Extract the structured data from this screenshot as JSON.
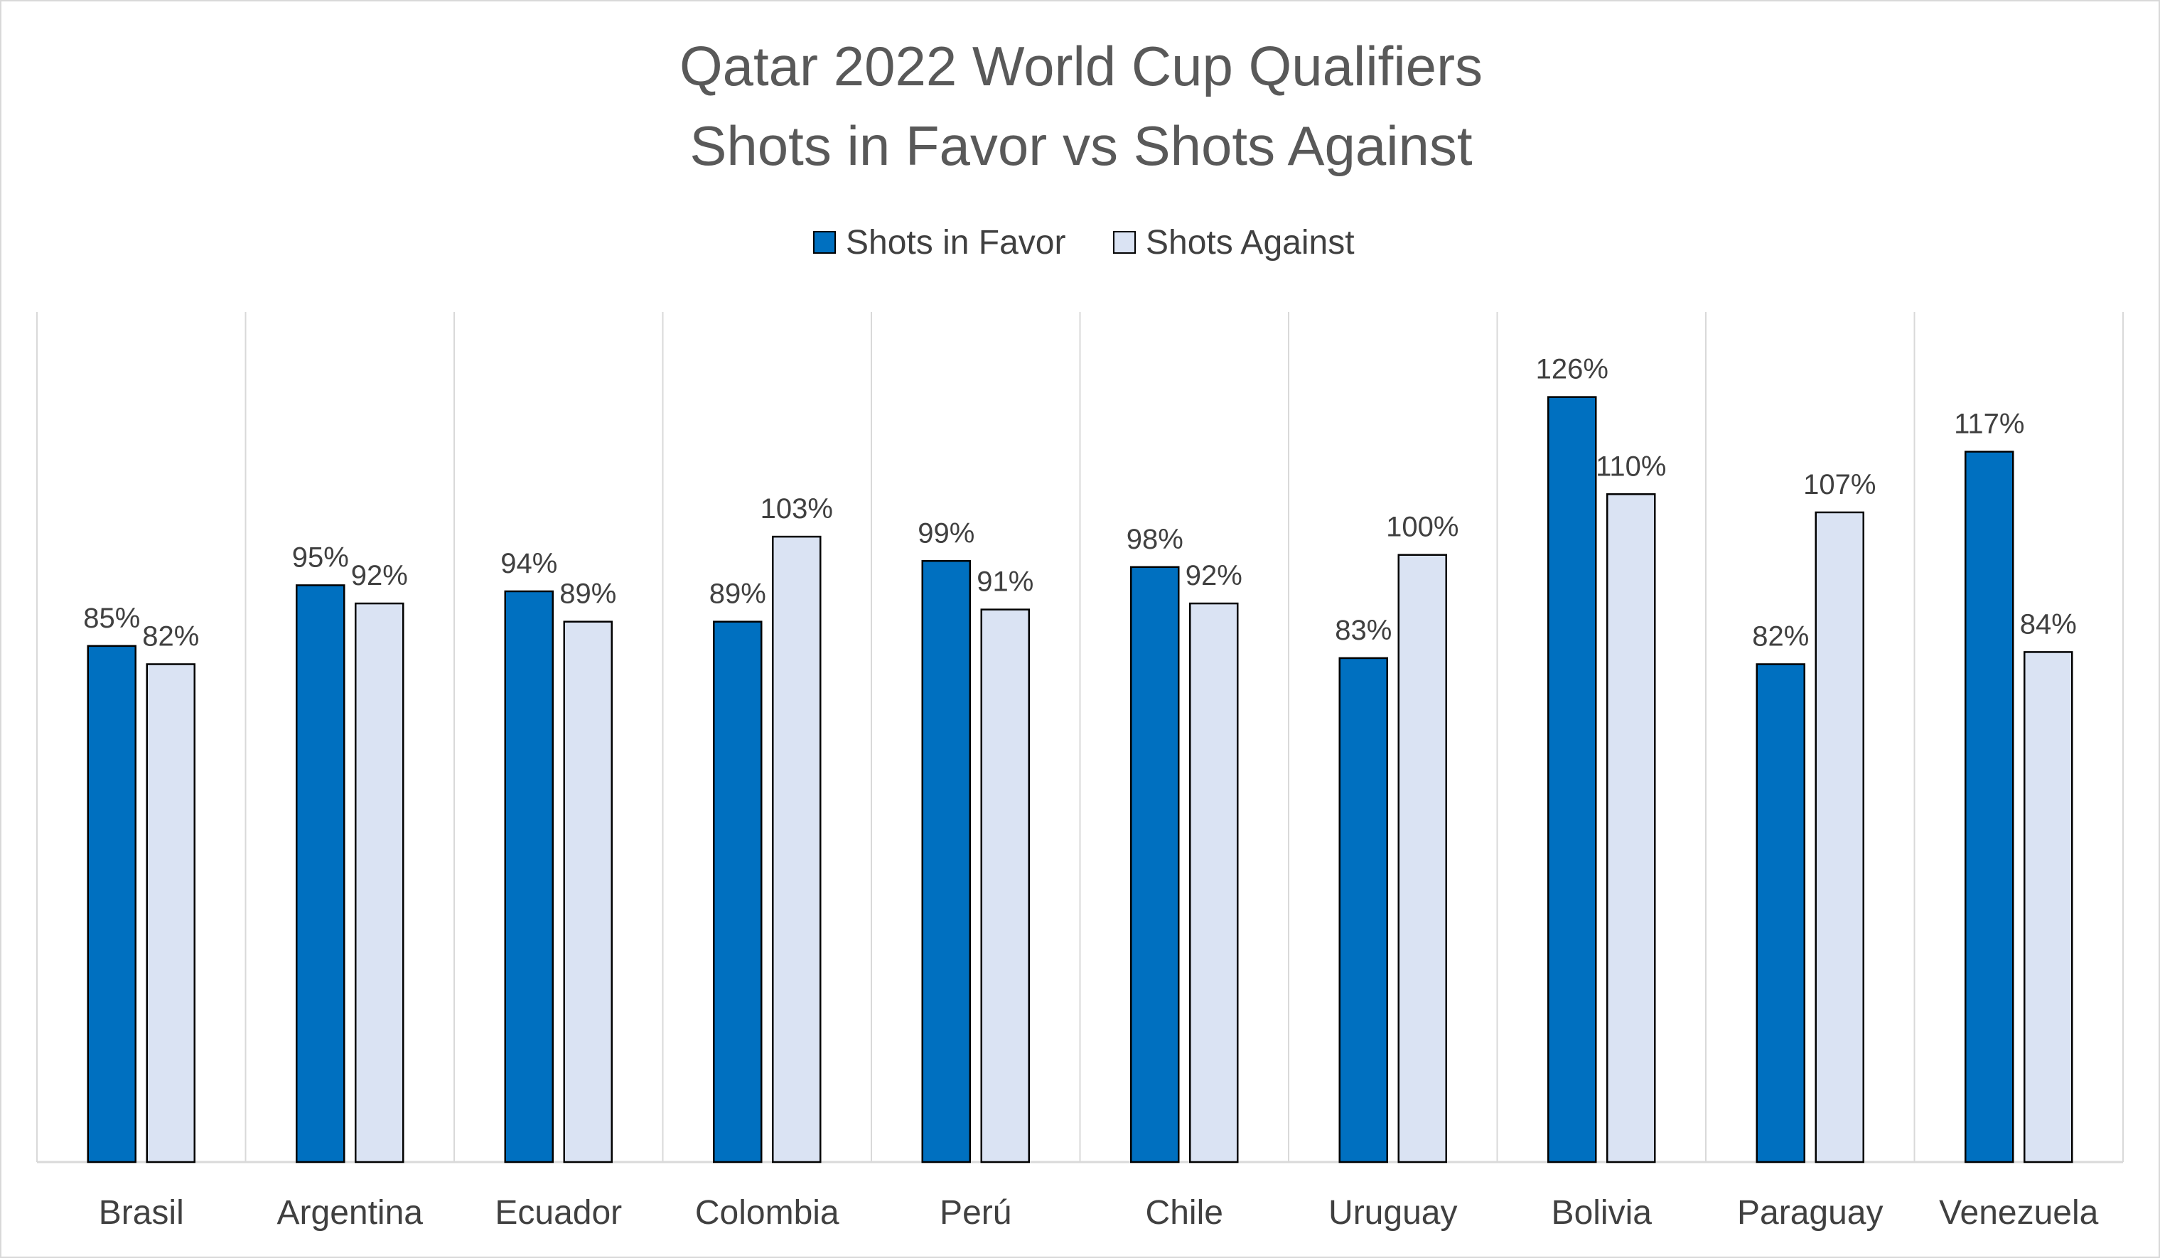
{
  "chart_data": {
    "type": "bar",
    "title": [
      "Qatar 2022 World Cup Qualifiers",
      "Shots in Favor vs Shots Against"
    ],
    "categories": [
      "Brasil",
      "Argentina",
      "Ecuador",
      "Colombia",
      "Perú",
      "Chile",
      "Uruguay",
      "Bolivia",
      "Paraguay",
      "Venezuela"
    ],
    "series": [
      {
        "name": "Shots in Favor",
        "color": "#0070c0",
        "values": [
          85,
          95,
          94,
          89,
          99,
          98,
          83,
          126,
          82,
          117
        ],
        "labels": [
          "85%",
          "95%",
          "94%",
          "89%",
          "99%",
          "98%",
          "83%",
          "126%",
          "82%",
          "117%"
        ]
      },
      {
        "name": "Shots Against",
        "color": "#dae3f3",
        "values": [
          82,
          92,
          89,
          103,
          91,
          92,
          100,
          110,
          107,
          84
        ],
        "labels": [
          "82%",
          "92%",
          "89%",
          "103%",
          "91%",
          "92%",
          "100%",
          "110%",
          "107%",
          "84%"
        ]
      }
    ],
    "legend_position": "top",
    "value_unit": "%",
    "y_axis_visible": false,
    "ylim": [
      0,
      140
    ],
    "vertical_category_gridlines": true,
    "colors": {
      "gridline": "#d9d9d9",
      "bar_outline": "#000000",
      "axis": "#d9d9d9"
    }
  }
}
